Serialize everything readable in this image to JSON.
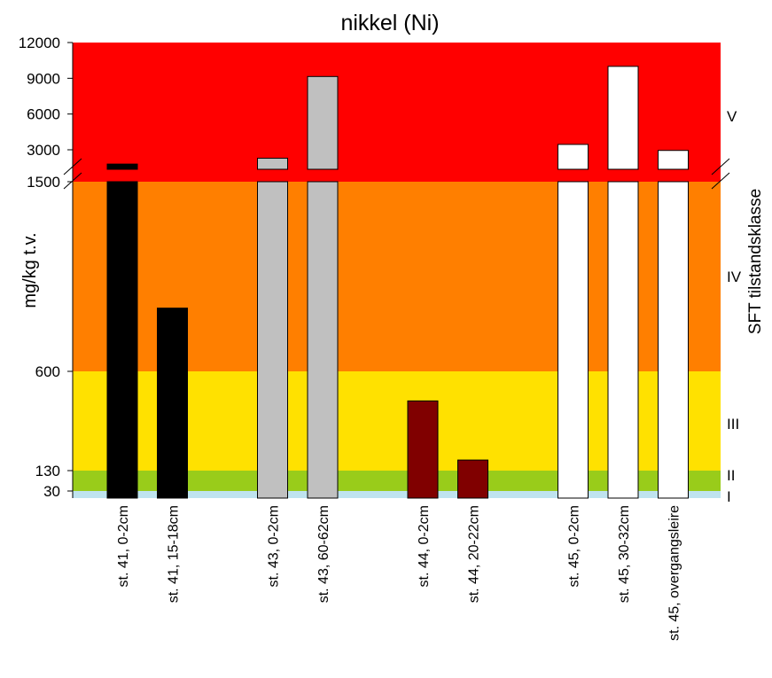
{
  "chart_data": {
    "type": "bar",
    "title": "nikkel (Ni)",
    "ylabel": "mg/kg t.v.",
    "right_label": "SFT tilstandsklasse",
    "axis_break": true,
    "lower_segment": {
      "ylim": [
        0,
        1500
      ],
      "ticks": [
        30,
        130,
        600,
        1500
      ]
    },
    "upper_segment": {
      "ylim": [
        1500,
        12000
      ],
      "ticks": [
        3000,
        6000,
        9000,
        12000
      ]
    },
    "classes": [
      {
        "label": "I",
        "from": 0,
        "to": 30,
        "color": "#bfe3ef"
      },
      {
        "label": "II",
        "from": 30,
        "to": 130,
        "color": "#99cc1a"
      },
      {
        "label": "III",
        "from": 130,
        "to": 600,
        "color": "#ffe100"
      },
      {
        "label": "IV",
        "from": 600,
        "to": 1500,
        "color": "#ff7f00"
      },
      {
        "label": "V",
        "from": 1500,
        "to": 12000,
        "color": "#ff0000"
      }
    ],
    "categories": [
      "st. 41, 0-2cm",
      "st. 41, 15-18cm",
      "",
      "st. 43, 0-2cm",
      "st. 43, 60-62cm",
      "",
      "st. 44, 0-2cm",
      "st. 44, 20-22cm",
      "",
      "st. 45, 0-2cm",
      "st. 45, 30-32cm",
      "st. 45, overgangsleire"
    ],
    "values": [
      1900,
      900,
      null,
      2350,
      9150,
      null,
      460,
      180,
      null,
      3450,
      10000,
      2950
    ],
    "bar_colors": [
      "#000000",
      "#000000",
      null,
      "#c0c0c0",
      "#c0c0c0",
      null,
      "#800000",
      "#800000",
      null,
      "#ffffff",
      "#ffffff",
      "#ffffff"
    ]
  }
}
